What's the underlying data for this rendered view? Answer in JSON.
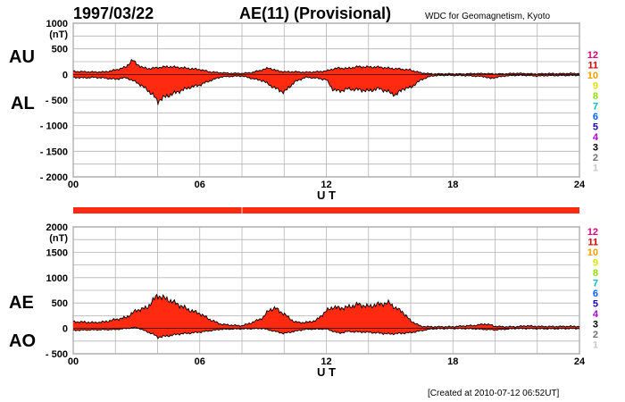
{
  "header": {
    "date": "1997/03/22",
    "title": "AE(11) (Provisional)",
    "source": "WDC for Geomagnetism, Kyoto"
  },
  "footer": {
    "created": "[Created at 2010-07-12 06:52UT]"
  },
  "colors": {
    "fill": "#ff2a10",
    "grid": "#b4b4b4",
    "legend": [
      "#d80078",
      "#d80000",
      "#f0a000",
      "#e0e000",
      "#90e000",
      "#00c0c0",
      "#0060ff",
      "#2000b0",
      "#b000d0",
      "#000000",
      "#707070",
      "#c8c8c8"
    ]
  },
  "legend_levels": [
    "12",
    "11",
    "10",
    "9",
    "8",
    "7",
    "6",
    "5",
    "4",
    "3",
    "2",
    "1"
  ],
  "chart_data": [
    {
      "type": "area",
      "panel": "AU/AL",
      "labels": [
        "AU",
        "AL"
      ],
      "unit": "(nT)",
      "xlabel": "U T",
      "xlim": [
        0,
        24
      ],
      "xticks": [
        "00",
        "06",
        "12",
        "18",
        "24"
      ],
      "ylim": [
        -2000,
        1000
      ],
      "yticks": [
        "1000",
        "500",
        "0",
        "- 500",
        "- 1000",
        "- 1500",
        "- 2000"
      ],
      "series": [
        {
          "name": "AU",
          "x": [
            0,
            0.5,
            1,
            1.5,
            2,
            2.5,
            2.8,
            3,
            3.3,
            3.6,
            4,
            4.5,
            5,
            5.5,
            6,
            6.5,
            7,
            7.5,
            8,
            8.5,
            9,
            9.3,
            9.6,
            10,
            10.5,
            11,
            11.5,
            12,
            12.3,
            12.6,
            13,
            13.5,
            14,
            14.5,
            15,
            15.5,
            16,
            16.5,
            17,
            17.5,
            18,
            18.5,
            19,
            19.5,
            20,
            20.5,
            21,
            21.5,
            22,
            22.5,
            23,
            23.5,
            24
          ],
          "values": [
            60,
            50,
            45,
            50,
            90,
            150,
            290,
            210,
            130,
            110,
            130,
            150,
            140,
            120,
            100,
            50,
            30,
            20,
            20,
            40,
            100,
            130,
            80,
            50,
            50,
            40,
            50,
            70,
            110,
            130,
            120,
            150,
            140,
            140,
            120,
            110,
            90,
            30,
            10,
            10,
            10,
            10,
            20,
            20,
            10,
            10,
            20,
            15,
            10,
            20,
            15,
            20,
            15
          ]
        },
        {
          "name": "AL",
          "x": [
            0,
            0.5,
            1,
            1.5,
            2,
            2.5,
            3,
            3.5,
            3.8,
            4,
            4.2,
            4.5,
            5,
            5.5,
            6,
            6.5,
            7,
            7.5,
            8,
            8.5,
            9,
            9.5,
            10,
            10.5,
            11,
            11.5,
            12,
            12.3,
            12.6,
            13,
            13.5,
            14,
            14.5,
            15,
            15.3,
            15.6,
            16,
            16.5,
            17,
            17.5,
            18,
            18.5,
            19,
            19.5,
            19.8,
            20,
            20.5,
            21,
            21.5,
            22,
            22.5,
            23,
            23.5,
            24
          ],
          "values": [
            -60,
            -70,
            -60,
            -70,
            -90,
            -60,
            -150,
            -300,
            -420,
            -540,
            -480,
            -420,
            -330,
            -250,
            -200,
            -120,
            -50,
            -40,
            -30,
            -80,
            -120,
            -250,
            -350,
            -150,
            -60,
            -70,
            -100,
            -280,
            -320,
            -280,
            -300,
            -330,
            -280,
            -350,
            -400,
            -280,
            -250,
            -100,
            -30,
            -20,
            -20,
            -20,
            -30,
            -40,
            -80,
            -60,
            -30,
            -20,
            -20,
            -30,
            -20,
            -20,
            -20,
            -20
          ]
        }
      ]
    },
    {
      "type": "area",
      "panel": "AE/AO",
      "labels": [
        "AE",
        "AO"
      ],
      "unit": "(nT)",
      "xlabel": "U T",
      "xlim": [
        0,
        24
      ],
      "xticks": [
        "00",
        "06",
        "12",
        "18",
        "24"
      ],
      "ylim": [
        -500,
        2000
      ],
      "yticks": [
        "2000",
        "1500",
        "1000",
        "500",
        "0",
        "- 500"
      ],
      "series": [
        {
          "name": "AE",
          "x": [
            0,
            0.5,
            1,
            1.5,
            2,
            2.5,
            3,
            3.5,
            3.8,
            4,
            4.2,
            4.5,
            5,
            5.5,
            6,
            6.5,
            7,
            7.5,
            8,
            8.5,
            9,
            9.3,
            9.6,
            10,
            10.5,
            11,
            11.5,
            12,
            12.3,
            12.6,
            13,
            13.5,
            14,
            14.5,
            15,
            15.3,
            15.6,
            16,
            16.5,
            17,
            17.5,
            18,
            18.5,
            19,
            19.5,
            19.8,
            20,
            20.5,
            21,
            21.5,
            22,
            22.5,
            23,
            23.5,
            24
          ],
          "values": [
            130,
            120,
            110,
            130,
            180,
            220,
            360,
            400,
            550,
            640,
            600,
            560,
            470,
            370,
            300,
            170,
            80,
            60,
            50,
            120,
            220,
            380,
            400,
            280,
            120,
            110,
            150,
            350,
            430,
            410,
            420,
            470,
            420,
            470,
            500,
            400,
            340,
            150,
            40,
            30,
            30,
            30,
            50,
            60,
            90,
            70,
            40,
            30,
            30,
            50,
            40,
            40,
            40,
            40,
            35
          ]
        },
        {
          "name": "AO",
          "x": [
            0,
            1,
            2,
            3,
            3.8,
            4,
            4.5,
            5,
            6,
            7,
            8,
            9,
            10,
            11,
            12,
            12.6,
            13,
            14,
            15,
            16,
            17,
            18,
            19,
            20,
            21,
            22,
            23,
            24
          ],
          "values": [
            -40,
            -30,
            -20,
            20,
            -120,
            -180,
            -150,
            -110,
            -70,
            -20,
            -10,
            0,
            -100,
            -20,
            -10,
            -90,
            -60,
            -80,
            -110,
            -80,
            -10,
            -5,
            -5,
            -30,
            -5,
            -5,
            -5,
            -5
          ]
        }
      ]
    }
  ]
}
